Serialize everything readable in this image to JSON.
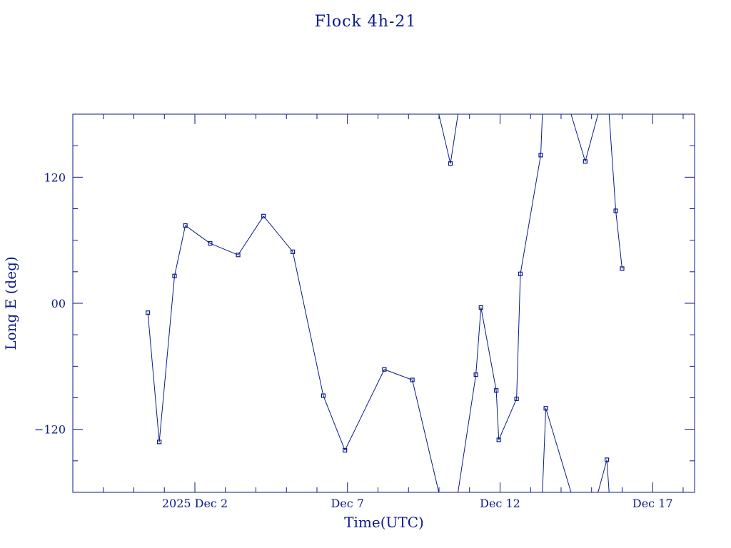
{
  "chart_data": {
    "type": "line",
    "title": "Flock 4h-21",
    "xlabel": "Time(UTC)",
    "ylabel": "Long E (deg)",
    "x_range": [
      "2025-11-28T00:00",
      "2025-12-18T09:00"
    ],
    "ylim": [
      -180,
      180
    ],
    "x_ticks": [
      {
        "t": "2025-12-02T00:00",
        "label": "2025 Dec  2"
      },
      {
        "t": "2025-12-07T00:00",
        "label": "Dec  7"
      },
      {
        "t": "2025-12-12T00:00",
        "label": "Dec 12"
      },
      {
        "t": "2025-12-17T00:00",
        "label": "Dec 17"
      }
    ],
    "y_ticks": [
      {
        "value": 120,
        "label": "120"
      },
      {
        "value": 0,
        "label": "00"
      },
      {
        "value": -120,
        "label": "−120"
      }
    ],
    "longitude_wrap": true,
    "series": [
      {
        "color": "#0b1a8c",
        "marker": "square",
        "points": [
          {
            "t": "2025-11-30T11:00",
            "y": -9
          },
          {
            "t": "2025-11-30T20:00",
            "y": -132
          },
          {
            "t": "2025-12-01T08:00",
            "y": 26
          },
          {
            "t": "2025-12-01T16:30",
            "y": 74
          },
          {
            "t": "2025-12-02T12:00",
            "y": 57
          },
          {
            "t": "2025-12-03T10:00",
            "y": 46
          },
          {
            "t": "2025-12-04T06:00",
            "y": 83
          },
          {
            "t": "2025-12-05T05:00",
            "y": 49
          },
          {
            "t": "2025-12-06T05:00",
            "y": -88
          },
          {
            "t": "2025-12-06T22:00",
            "y": -140
          },
          {
            "t": "2025-12-08T05:00",
            "y": -63
          },
          {
            "t": "2025-12-09T03:00",
            "y": -73
          },
          {
            "t": "2025-12-10T09:00",
            "y": 133
          },
          {
            "t": "2025-12-11T05:00",
            "y": -68
          },
          {
            "t": "2025-12-11T09:00",
            "y": -4
          },
          {
            "t": "2025-12-11T21:00",
            "y": -83
          },
          {
            "t": "2025-12-11T23:00",
            "y": -130
          },
          {
            "t": "2025-12-12T13:00",
            "y": -91
          },
          {
            "t": "2025-12-12T16:00",
            "y": 28
          },
          {
            "t": "2025-12-13T08:00",
            "y": 141
          },
          {
            "t": "2025-12-13T12:00",
            "y": -100
          },
          {
            "t": "2025-12-14T19:00",
            "y": 135
          },
          {
            "t": "2025-12-15T12:00",
            "y": -149
          },
          {
            "t": "2025-12-15T19:00",
            "y": 88
          },
          {
            "t": "2025-12-16T00:00",
            "y": 33
          }
        ]
      }
    ]
  }
}
